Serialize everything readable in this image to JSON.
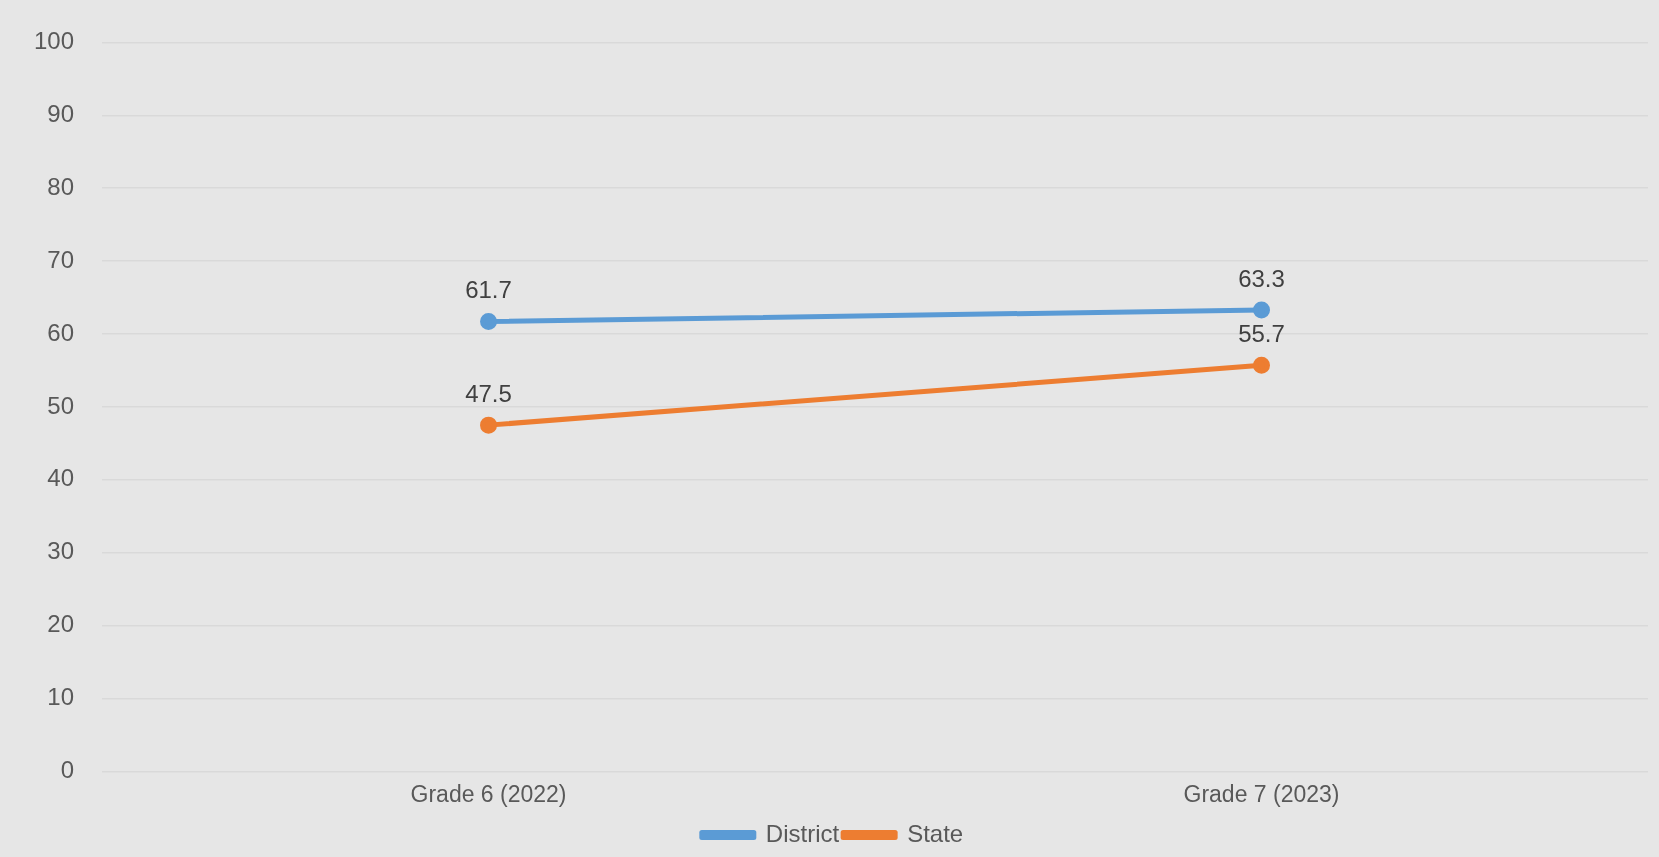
{
  "chart_data": {
    "type": "line",
    "categories": [
      "Grade 6 (2022)",
      "Grade 7 (2023)"
    ],
    "series": [
      {
        "name": "District",
        "color": "#5b9bd5",
        "values": [
          61.7,
          63.3
        ]
      },
      {
        "name": "State",
        "color": "#ed7d31",
        "values": [
          47.5,
          55.7
        ]
      }
    ],
    "ylim": [
      0,
      100
    ],
    "yticks": [
      0,
      10,
      20,
      30,
      40,
      50,
      60,
      70,
      80,
      90,
      100
    ],
    "grid": "y",
    "legend": "bottom",
    "marker": "circle",
    "line_style": "solid",
    "data_labels": true
  }
}
